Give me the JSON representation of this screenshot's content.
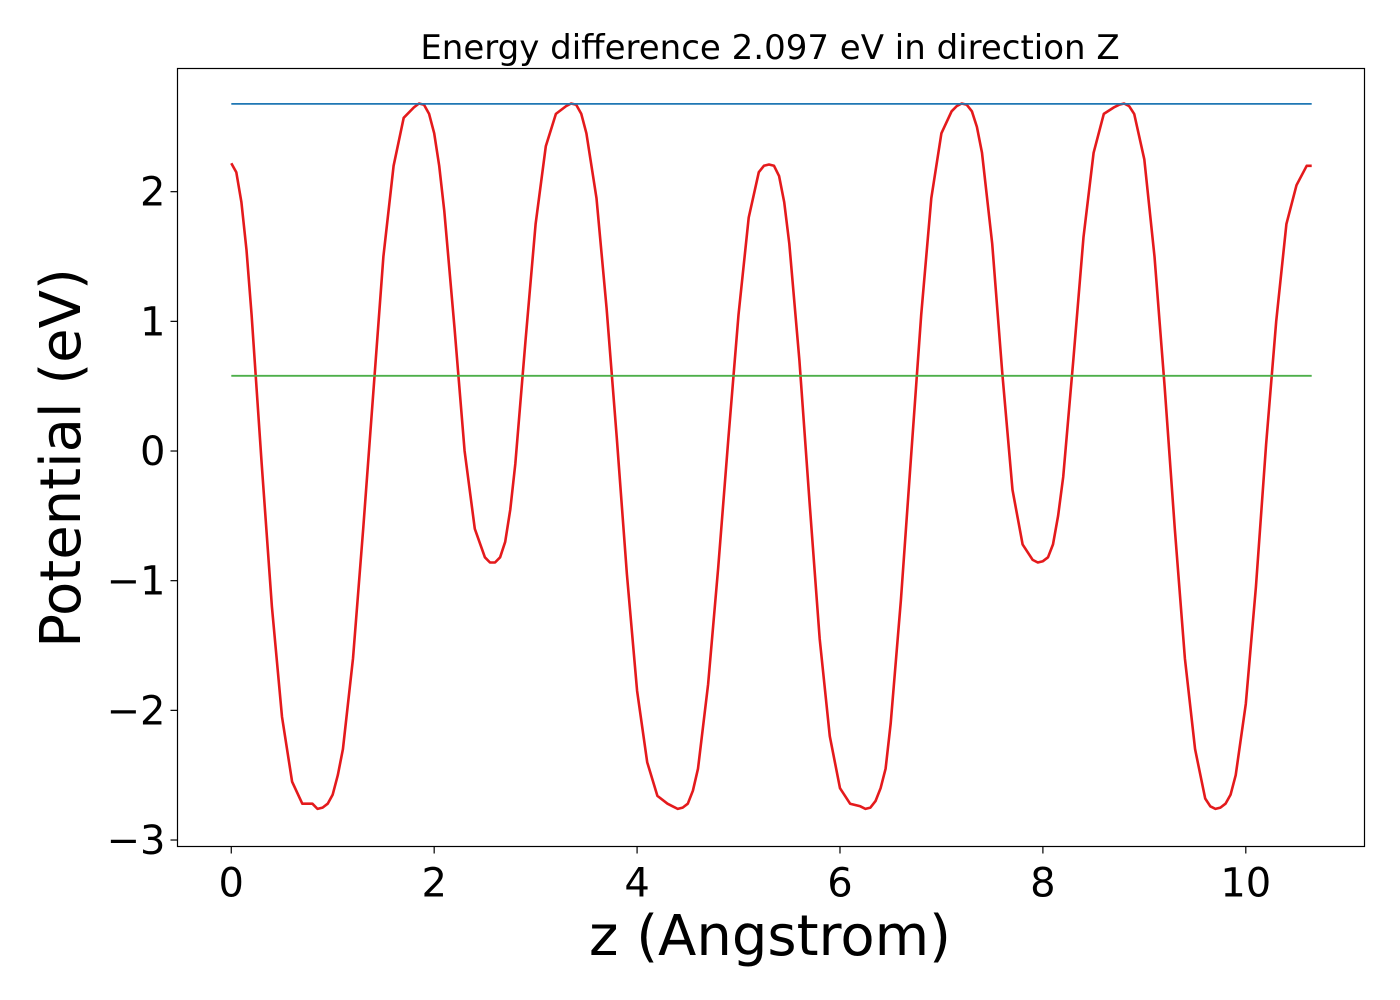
{
  "chart_data": {
    "type": "line",
    "title": "Energy difference 2.097 eV in direction Z",
    "xlabel": "z (Angstrom)",
    "ylabel": "Potential (eV)",
    "xlim": [
      -0.53,
      11.17
    ],
    "ylim": [
      -3.05,
      2.95
    ],
    "xticks": [
      0,
      2,
      4,
      6,
      8,
      10
    ],
    "xtick_labels": [
      "0",
      "2",
      "4",
      "6",
      "8",
      "10"
    ],
    "yticks": [
      -3,
      -2,
      -1,
      0,
      1,
      2
    ],
    "ytick_labels": [
      "−3",
      "−2",
      "−1",
      "0",
      "1",
      "2"
    ],
    "grid": false,
    "series": [
      {
        "color": "#e41a1c",
        "x": [
          0,
          0.05,
          0.1,
          0.15,
          0.2,
          0.25,
          0.3,
          0.4,
          0.5,
          0.6,
          0.7,
          0.8,
          0.85,
          0.9,
          0.95,
          1.0,
          1.05,
          1.1,
          1.2,
          1.3,
          1.4,
          1.5,
          1.6,
          1.7,
          1.8,
          1.85,
          1.9,
          1.95,
          2.0,
          2.05,
          2.1,
          2.2,
          2.3,
          2.4,
          2.5,
          2.55,
          2.6,
          2.65,
          2.7,
          2.75,
          2.8,
          2.9,
          3.0,
          3.1,
          3.2,
          3.3,
          3.35,
          3.4,
          3.45,
          3.5,
          3.6,
          3.7,
          3.8,
          3.9,
          4.0,
          4.1,
          4.2,
          4.3,
          4.35,
          4.4,
          4.45,
          4.5,
          4.55,
          4.6,
          4.7,
          4.8,
          4.9,
          5.0,
          5.1,
          5.2,
          5.25,
          5.3,
          5.35,
          5.4,
          5.45,
          5.5,
          5.6,
          5.7,
          5.8,
          5.9,
          6.0,
          6.1,
          6.2,
          6.25,
          6.3,
          6.35,
          6.4,
          6.45,
          6.5,
          6.6,
          6.7,
          6.8,
          6.9,
          7.0,
          7.1,
          7.15,
          7.2,
          7.25,
          7.3,
          7.35,
          7.4,
          7.5,
          7.6,
          7.7,
          7.8,
          7.9,
          7.95,
          8.0,
          8.05,
          8.1,
          8.15,
          8.2,
          8.3,
          8.4,
          8.5,
          8.6,
          8.7,
          8.75,
          8.8,
          8.85,
          8.9,
          9.0,
          9.1,
          9.2,
          9.3,
          9.4,
          9.5,
          9.6,
          9.65,
          9.7,
          9.75,
          9.8,
          9.85,
          9.9,
          10.0,
          10.1,
          10.2,
          10.3,
          10.4,
          10.5,
          10.6,
          10.65
        ],
        "y": [
          2.22,
          2.15,
          1.92,
          1.55,
          1.05,
          0.48,
          -0.1,
          -1.2,
          -2.05,
          -2.55,
          -2.72,
          -2.72,
          -2.76,
          -2.75,
          -2.72,
          -2.65,
          -2.5,
          -2.3,
          -1.6,
          -0.6,
          0.45,
          1.5,
          2.2,
          2.57,
          2.65,
          2.68,
          2.67,
          2.6,
          2.45,
          2.2,
          1.85,
          0.95,
          0.0,
          -0.6,
          -0.82,
          -0.86,
          -0.86,
          -0.82,
          -0.7,
          -0.45,
          -0.1,
          0.85,
          1.75,
          2.35,
          2.6,
          2.66,
          2.68,
          2.67,
          2.6,
          2.45,
          1.95,
          1.1,
          0.1,
          -0.95,
          -1.85,
          -2.4,
          -2.66,
          -2.72,
          -2.74,
          -2.76,
          -2.75,
          -2.72,
          -2.62,
          -2.45,
          -1.8,
          -0.9,
          0.1,
          1.05,
          1.8,
          2.15,
          2.2,
          2.21,
          2.2,
          2.12,
          1.92,
          1.6,
          0.7,
          -0.4,
          -1.45,
          -2.2,
          -2.6,
          -2.72,
          -2.74,
          -2.76,
          -2.75,
          -2.7,
          -2.6,
          -2.45,
          -2.1,
          -1.15,
          -0.05,
          1.05,
          1.95,
          2.45,
          2.62,
          2.66,
          2.68,
          2.67,
          2.62,
          2.5,
          2.3,
          1.6,
          0.6,
          -0.3,
          -0.72,
          -0.84,
          -0.86,
          -0.85,
          -0.82,
          -0.72,
          -0.5,
          -0.2,
          0.7,
          1.65,
          2.3,
          2.6,
          2.65,
          2.67,
          2.68,
          2.66,
          2.6,
          2.25,
          1.5,
          0.5,
          -0.6,
          -1.6,
          -2.3,
          -2.68,
          -2.74,
          -2.76,
          -2.75,
          -2.72,
          -2.65,
          -2.5,
          -1.95,
          -1.05,
          0.05,
          1.0,
          1.75,
          2.05,
          2.2,
          2.2
        ]
      },
      {
        "color": "#1f77b4",
        "x": [
          0,
          10.65
        ],
        "y": [
          2.677,
          2.677
        ]
      },
      {
        "color": "#4daf4a",
        "x": [
          0,
          10.65
        ],
        "y": [
          0.58,
          0.58
        ]
      }
    ]
  }
}
